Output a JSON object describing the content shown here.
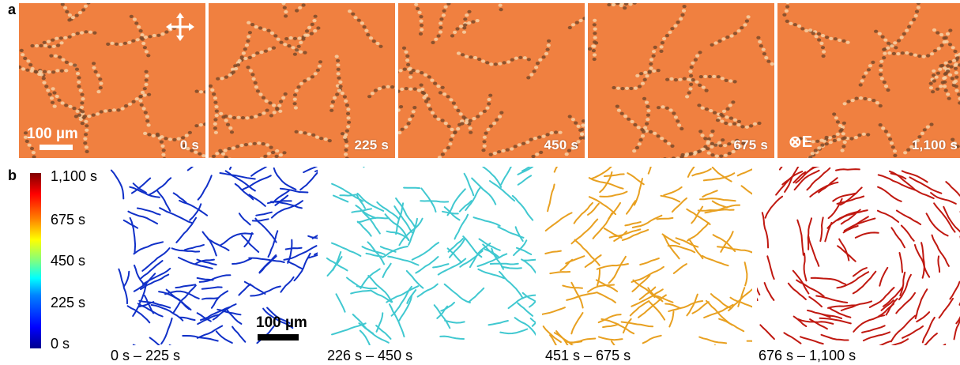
{
  "panels": {
    "a": {
      "letter": "a",
      "frames": [
        {
          "time": "0 s",
          "scale_bar": "100 µm"
        },
        {
          "time": "225 s"
        },
        {
          "time": "450 s"
        },
        {
          "time": "675 s"
        },
        {
          "time": "1,100 s",
          "field_label": "⊗E"
        }
      ],
      "background_color": "#f08040",
      "icon": "crossed-polarizer-arrows-icon"
    },
    "b": {
      "letter": "b",
      "colorbar_ticks": [
        "1,100 s",
        "675 s",
        "450 s",
        "225 s",
        "0 s"
      ],
      "scale_bar": "100 µm",
      "ranges": [
        "0 s – 225 s",
        "226 s – 450 s",
        "451 s – 675 s",
        "676 s – 1,100 s"
      ],
      "range_colors": [
        "#1030c8",
        "#40c8d0",
        "#e8a020",
        "#c01810"
      ]
    }
  }
}
